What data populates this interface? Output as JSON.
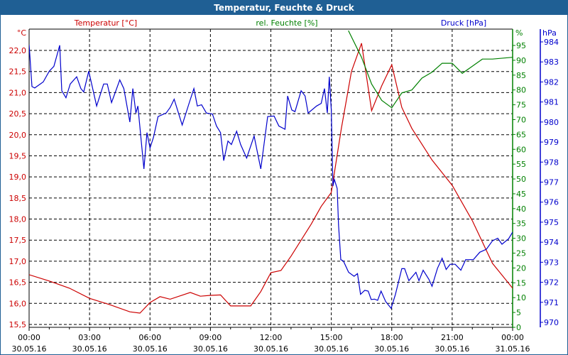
{
  "window": {
    "title": "Temperatur, Feuchte & Druck"
  },
  "chart_data": {
    "type": "line",
    "title": "Temperatur, Feuchte & Druck",
    "colors": {
      "temperature": "#cc0000",
      "humidity": "#008000",
      "pressure": "#0000cc",
      "titlebar": "#1f5f94"
    },
    "x_axis": {
      "range_hours": [
        0,
        24
      ],
      "ticks": [
        {
          "h": 0,
          "time": "00:00",
          "date": "30.05.16"
        },
        {
          "h": 3,
          "time": "03:00",
          "date": "30.05.16"
        },
        {
          "h": 6,
          "time": "06:00",
          "date": "30.05.16"
        },
        {
          "h": 9,
          "time": "09:00",
          "date": "30.05.16"
        },
        {
          "h": 12,
          "time": "12:00",
          "date": "30.05.16"
        },
        {
          "h": 15,
          "time": "15:00",
          "date": "30.05.16"
        },
        {
          "h": 18,
          "time": "18:00",
          "date": "30.05.16"
        },
        {
          "h": 21,
          "time": "21:00",
          "date": "30.05.16"
        },
        {
          "h": 24,
          "time": "00:00",
          "date": "31.05.16"
        }
      ]
    },
    "axes": {
      "temperature": {
        "legend": "Temperatur [°C]",
        "unit": "°C",
        "ylim": [
          15.5,
          22.0
        ],
        "ticks": [
          [
            15.5,
            "15,5"
          ],
          [
            16,
            "16,0"
          ],
          [
            16.5,
            "16,5"
          ],
          [
            17,
            "17,0"
          ],
          [
            17.5,
            "17,5"
          ],
          [
            18,
            "18,0"
          ],
          [
            18.5,
            "18,5"
          ],
          [
            19,
            "19,0"
          ],
          [
            19.5,
            "19,5"
          ],
          [
            20,
            "20,0"
          ],
          [
            20.5,
            "20,5"
          ],
          [
            21,
            "21,0"
          ],
          [
            21.5,
            "21,5"
          ],
          [
            22,
            "22,0"
          ]
        ]
      },
      "humidity": {
        "legend": "rel. Feuchte [%]",
        "unit": "%",
        "ylim": [
          0,
          95
        ],
        "ticks": [
          [
            0,
            "0"
          ],
          [
            5,
            "5"
          ],
          [
            10,
            "10"
          ],
          [
            15,
            "15"
          ],
          [
            20,
            "20"
          ],
          [
            25,
            "25"
          ],
          [
            30,
            "30"
          ],
          [
            35,
            "35"
          ],
          [
            40,
            "40"
          ],
          [
            45,
            "45"
          ],
          [
            50,
            "50"
          ],
          [
            55,
            "55"
          ],
          [
            60,
            "60"
          ],
          [
            65,
            "65"
          ],
          [
            70,
            "70"
          ],
          [
            75,
            "75"
          ],
          [
            80,
            "80"
          ],
          [
            85,
            "85"
          ],
          [
            90,
            "90"
          ],
          [
            95,
            "95"
          ]
        ]
      },
      "pressure": {
        "legend": "Druck [hPa]",
        "unit": "hPa",
        "ylim": [
          970,
          984
        ],
        "ticks": [
          [
            970,
            "970"
          ],
          [
            971,
            "971"
          ],
          [
            972,
            "972"
          ],
          [
            973,
            "973"
          ],
          [
            974,
            "974"
          ],
          [
            975,
            "975"
          ],
          [
            976,
            "976"
          ],
          [
            977,
            "977"
          ],
          [
            978,
            "978"
          ],
          [
            979,
            "979"
          ],
          [
            980,
            "980"
          ],
          [
            981,
            "981"
          ],
          [
            982,
            "982"
          ],
          [
            983,
            "983"
          ],
          [
            984,
            "984"
          ]
        ]
      }
    },
    "series": [
      {
        "name": "Temperatur [°C]",
        "axis": "temperature",
        "points": [
          [
            0,
            16.68
          ],
          [
            1,
            16.53
          ],
          [
            2,
            16.36
          ],
          [
            3,
            16.12
          ],
          [
            4,
            15.97
          ],
          [
            5,
            15.8
          ],
          [
            5.5,
            15.77
          ],
          [
            6,
            16.02
          ],
          [
            6.5,
            16.16
          ],
          [
            7,
            16.1
          ],
          [
            8,
            16.26
          ],
          [
            8.5,
            16.17
          ],
          [
            9,
            16.19
          ],
          [
            9.5,
            16.2
          ],
          [
            10,
            15.94
          ],
          [
            11,
            15.94
          ],
          [
            11.5,
            16.28
          ],
          [
            12,
            16.73
          ],
          [
            12.5,
            16.78
          ],
          [
            13,
            17.12
          ],
          [
            14,
            17.88
          ],
          [
            14.5,
            18.3
          ],
          [
            15,
            18.63
          ],
          [
            15.5,
            20.15
          ],
          [
            16,
            21.5
          ],
          [
            16.5,
            22.17
          ],
          [
            17,
            20.57
          ],
          [
            17.5,
            21.16
          ],
          [
            18,
            21.66
          ],
          [
            18.5,
            20.65
          ],
          [
            19,
            20.15
          ],
          [
            20,
            19.4
          ],
          [
            21,
            18.8
          ],
          [
            22,
            17.96
          ],
          [
            23,
            16.95
          ],
          [
            24,
            16.36
          ]
        ]
      },
      {
        "name": "rel. Feuchte [%]",
        "axis": "humidity",
        "points": [
          [
            15.85,
            100
          ],
          [
            16.5,
            91
          ],
          [
            17,
            82
          ],
          [
            17.5,
            76.5
          ],
          [
            18,
            74
          ],
          [
            18.5,
            79
          ],
          [
            19,
            80
          ],
          [
            19.5,
            84
          ],
          [
            20,
            86
          ],
          [
            20.5,
            89
          ],
          [
            21,
            89
          ],
          [
            21.5,
            85.6
          ],
          [
            22,
            88
          ],
          [
            22.5,
            90.4
          ],
          [
            23,
            90.4
          ],
          [
            24,
            91
          ]
        ]
      },
      {
        "name": "Druck [hPa]",
        "axis": "pressure",
        "points": [
          [
            0,
            983.86
          ],
          [
            0.14,
            981.77
          ],
          [
            0.28,
            981.7
          ],
          [
            0.7,
            982.0
          ],
          [
            1.0,
            982.54
          ],
          [
            1.23,
            982.78
          ],
          [
            1.52,
            983.83
          ],
          [
            1.62,
            981.56
          ],
          [
            1.83,
            981.21
          ],
          [
            2.04,
            981.9
          ],
          [
            2.36,
            982.26
          ],
          [
            2.57,
            981.67
          ],
          [
            2.71,
            981.5
          ],
          [
            2.96,
            982.54
          ],
          [
            3.35,
            980.8
          ],
          [
            3.7,
            981.9
          ],
          [
            3.88,
            981.9
          ],
          [
            4.09,
            980.97
          ],
          [
            4.5,
            982.1
          ],
          [
            4.7,
            981.67
          ],
          [
            5.0,
            980.0
          ],
          [
            5.15,
            981.67
          ],
          [
            5.3,
            980.45
          ],
          [
            5.4,
            980.8
          ],
          [
            5.7,
            977.66
          ],
          [
            5.85,
            979.47
          ],
          [
            6.0,
            978.7
          ],
          [
            6.17,
            979.23
          ],
          [
            6.4,
            980.27
          ],
          [
            6.8,
            980.45
          ],
          [
            7.0,
            980.72
          ],
          [
            7.2,
            981.14
          ],
          [
            7.6,
            979.85
          ],
          [
            7.93,
            980.9
          ],
          [
            8.18,
            981.67
          ],
          [
            8.35,
            980.8
          ],
          [
            8.56,
            980.86
          ],
          [
            8.8,
            980.45
          ],
          [
            9.1,
            980.4
          ],
          [
            9.3,
            979.8
          ],
          [
            9.5,
            979.47
          ],
          [
            9.66,
            978.07
          ],
          [
            9.87,
            979.05
          ],
          [
            10.04,
            978.88
          ],
          [
            10.3,
            979.54
          ],
          [
            10.5,
            978.88
          ],
          [
            10.8,
            978.2
          ],
          [
            11.17,
            979.3
          ],
          [
            11.5,
            977.66
          ],
          [
            11.84,
            980.27
          ],
          [
            12.16,
            980.3
          ],
          [
            12.4,
            979.8
          ],
          [
            12.7,
            979.64
          ],
          [
            12.83,
            981.3
          ],
          [
            13.04,
            980.6
          ],
          [
            13.2,
            980.52
          ],
          [
            13.5,
            981.56
          ],
          [
            13.7,
            981.3
          ],
          [
            13.85,
            980.45
          ],
          [
            14.27,
            980.8
          ],
          [
            14.5,
            980.93
          ],
          [
            14.66,
            981.67
          ],
          [
            14.8,
            980.45
          ],
          [
            14.9,
            982.26
          ],
          [
            15.0,
            980.6
          ],
          [
            15.08,
            976.8
          ],
          [
            15.15,
            977.14
          ],
          [
            15.29,
            976.68
          ],
          [
            15.36,
            974.87
          ],
          [
            15.47,
            973.13
          ],
          [
            15.6,
            973.06
          ],
          [
            15.86,
            972.5
          ],
          [
            16.13,
            972.3
          ],
          [
            16.3,
            972.43
          ],
          [
            16.45,
            971.4
          ],
          [
            16.66,
            971.6
          ],
          [
            16.83,
            971.56
          ],
          [
            16.98,
            971.14
          ],
          [
            17.15,
            971.16
          ],
          [
            17.3,
            971.1
          ],
          [
            17.47,
            971.56
          ],
          [
            17.7,
            971.04
          ],
          [
            17.97,
            970.7
          ],
          [
            18.18,
            971.39
          ],
          [
            18.5,
            972.68
          ],
          [
            18.64,
            972.68
          ],
          [
            18.85,
            972.08
          ],
          [
            19.2,
            972.5
          ],
          [
            19.35,
            972.08
          ],
          [
            19.56,
            972.6
          ],
          [
            19.84,
            972.15
          ],
          [
            20.0,
            971.8
          ],
          [
            20.27,
            972.7
          ],
          [
            20.5,
            973.2
          ],
          [
            20.7,
            972.64
          ],
          [
            20.9,
            972.9
          ],
          [
            21.15,
            972.9
          ],
          [
            21.43,
            972.6
          ],
          [
            21.67,
            973.13
          ],
          [
            22.05,
            973.13
          ],
          [
            22.37,
            973.5
          ],
          [
            22.7,
            973.65
          ],
          [
            23.0,
            974.07
          ],
          [
            23.26,
            974.2
          ],
          [
            23.47,
            973.9
          ],
          [
            23.8,
            974.17
          ],
          [
            24.0,
            974.5
          ]
        ]
      }
    ],
    "grid": true
  }
}
